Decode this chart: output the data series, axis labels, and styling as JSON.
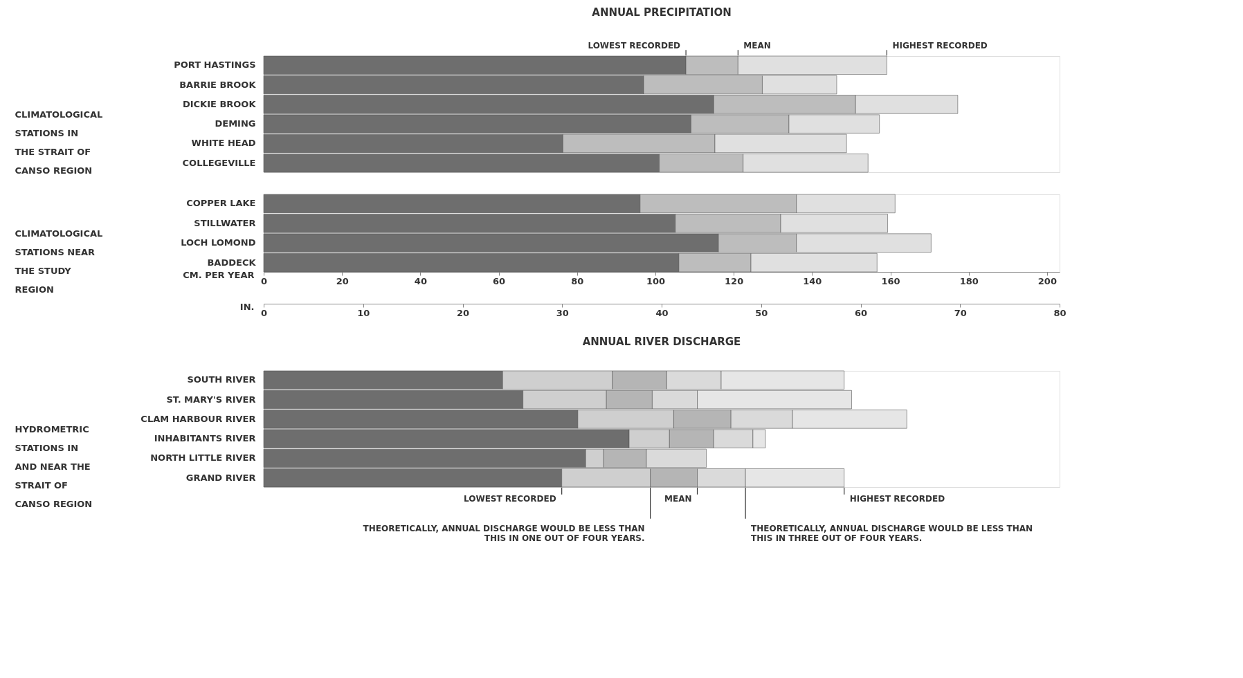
{
  "chart_data": [
    {
      "type": "bar",
      "orientation": "horizontal",
      "stacked": true,
      "title": "ANNUAL PRECIPITATION",
      "ylabel": "CLIMATOLOGICAL STATIONS IN THE STRAIT OF CANSO REGION",
      "categories": [
        "PORT HASTINGS",
        "BARRIE BROOK",
        "DICKIE BROOK",
        "DEMING",
        "WHITE HEAD",
        "COLLEGEVILLE"
      ],
      "series": [
        {
          "color": "#6e6e6e",
          "values": [
            107.8,
            97.0,
            114.9,
            109.1,
            76.4,
            101.0
          ]
        },
        {
          "color": "#bdbdbd",
          "values": [
            13.3,
            30.3,
            36.2,
            25.0,
            38.8,
            21.4
          ]
        },
        {
          "color": "#e0e0e0",
          "values": [
            38.0,
            19.0,
            26.1,
            23.1,
            33.6,
            31.9
          ]
        }
      ],
      "xlim": [
        0,
        203.2
      ],
      "tick_labels": "y",
      "annotations": [
        {
          "text": "LOWEST RECORDED",
          "x": 107.8,
          "y": "PORT HASTINGS"
        },
        {
          "text": "MEAN",
          "x": 121.1,
          "y": "PORT HASTINGS"
        },
        {
          "text": "HIGHEST RECORDED",
          "x": 159.1,
          "y": "PORT HASTINGS"
        }
      ]
    },
    {
      "type": "bar",
      "orientation": "horizontal",
      "stacked": true,
      "ylabel": "CLIMATOLOGICAL STATIONS NEAR THE STUDY REGION",
      "categories": [
        "COPPER LAKE",
        "STILLWATER",
        "LOCH LOMOND",
        "BADDECK"
      ],
      "series": [
        {
          "color": "#6e6e6e",
          "values": [
            96.1,
            105.1,
            116.1,
            106.0
          ]
        },
        {
          "color": "#bdbdbd",
          "values": [
            39.9,
            26.9,
            19.9,
            18.4
          ]
        },
        {
          "color": "#e0e0e0",
          "values": [
            25.2,
            27.3,
            34.4,
            32.2
          ]
        }
      ],
      "xlim": [
        0,
        203.2
      ],
      "xticks": [
        0,
        20,
        40,
        60,
        80,
        100,
        120,
        140,
        160,
        180,
        200
      ],
      "xlabel": "CM. PER YEAR",
      "x2lim": [
        0,
        80
      ],
      "x2ticks": [
        0,
        10,
        20,
        30,
        40,
        50,
        60,
        70,
        80
      ],
      "x2label": "IN."
    },
    {
      "type": "bar",
      "orientation": "horizontal",
      "stacked": true,
      "title": "ANNUAL RIVER DISCHARGE",
      "ylabel": "HYDROMETRIC STATIONS IN AND NEAR THE STRAIT OF CANSO REGION",
      "categories": [
        "SOUTH RIVER",
        "ST. MARY'S RIVER",
        "CLAM HARBOUR RIVER",
        "INHABITANTS RIVER",
        "NORTH LITTLE RIVER",
        "GRAND RIVER"
      ],
      "series": [
        {
          "color": "#6e6e6e",
          "values": [
            61.0,
            66.2,
            80.2,
            93.3,
            82.2,
            76.1
          ]
        },
        {
          "color": "#cfcfcf",
          "values": [
            28.0,
            21.3,
            24.5,
            10.3,
            4.6,
            22.6
          ]
        },
        {
          "color": "#b5b5b5",
          "values": [
            13.9,
            11.7,
            14.6,
            11.3,
            10.9,
            12.0
          ]
        },
        {
          "color": "#dadada",
          "values": [
            13.9,
            11.5,
            15.7,
            10.0,
            15.3,
            12.3
          ]
        },
        {
          "color": "#e6e6e6",
          "values": [
            31.4,
            39.4,
            29.2,
            3.2,
            null,
            25.2
          ]
        }
      ],
      "xlim": [
        0,
        203.2
      ],
      "tick_labels": "y",
      "annotations": [
        {
          "text": "LOWEST RECORDED",
          "x": 76.1,
          "y": "GRAND RIVER"
        },
        {
          "text": "MEAN",
          "x": 110.7,
          "y": "GRAND RIVER"
        },
        {
          "text": "HIGHEST RECORDED",
          "x": 148.2,
          "y": "GRAND RIVER"
        },
        {
          "text": "THEORETICALLY, ANNUAL DISCHARGE WOULD BE LESS THAN THIS IN ONE OUT OF FOUR YEARS.",
          "x": 98.7,
          "y": "GRAND RIVER"
        },
        {
          "text": "THEORETICALLY, ANNUAL DISCHARGE WOULD BE LESS THAN THIS IN THREE OUT OF FOUR YEARS.",
          "x": 123.0,
          "y": "GRAND RIVER"
        }
      ]
    }
  ]
}
